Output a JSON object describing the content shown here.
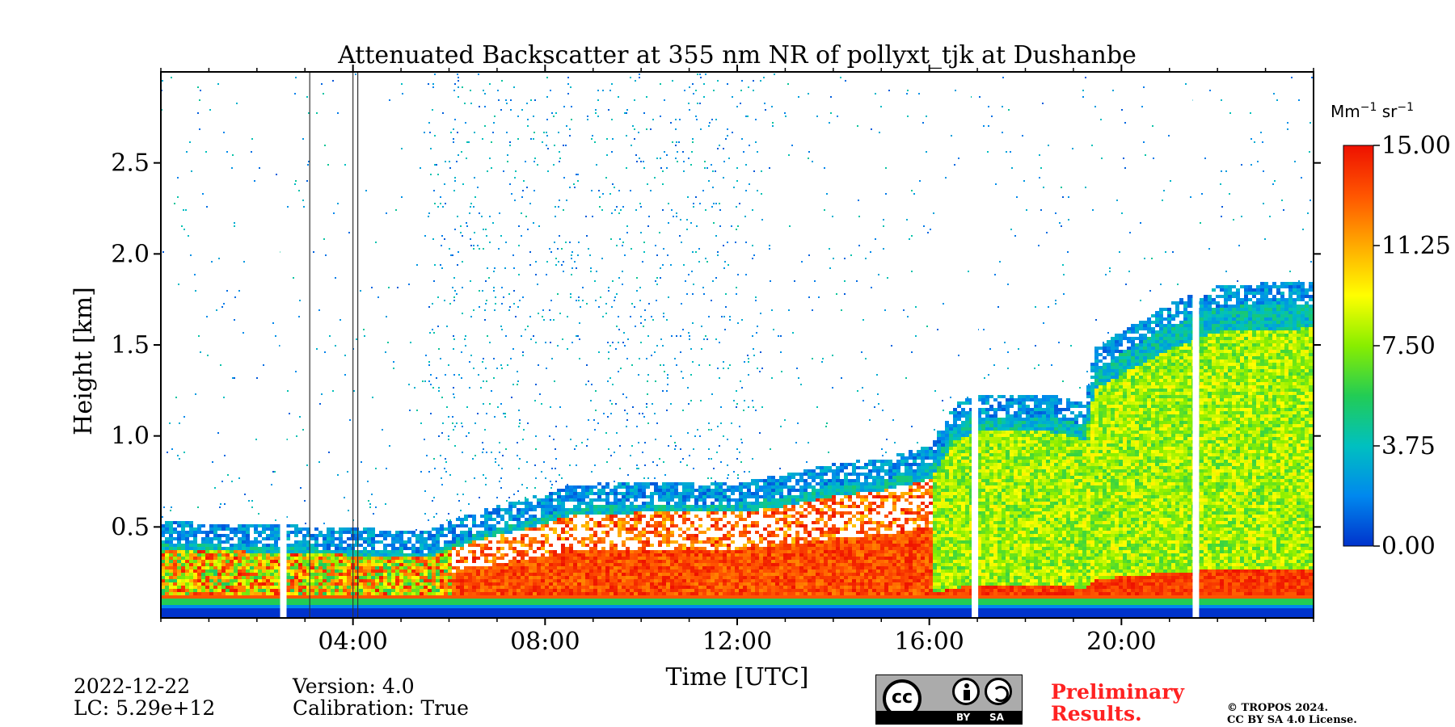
{
  "chart_data": {
    "type": "heatmap",
    "title": "Attenuated Backscatter at 355 nm NR of pollyxt_tjk at Dushanbe",
    "xlabel": "Time [UTC]",
    "ylabel": "Height [km]",
    "xlim_hours": [
      0,
      24
    ],
    "ylim_km": [
      0,
      3.0
    ],
    "x_ticks": [
      {
        "value": 4,
        "label": "04:00"
      },
      {
        "value": 8,
        "label": "08:00"
      },
      {
        "value": 12,
        "label": "12:00"
      },
      {
        "value": 16,
        "label": "16:00"
      },
      {
        "value": 20,
        "label": "20:00"
      }
    ],
    "y_ticks": [
      {
        "value": 0.5,
        "label": "0.5"
      },
      {
        "value": 1.0,
        "label": "1.0"
      },
      {
        "value": 1.5,
        "label": "1.5"
      },
      {
        "value": 2.0,
        "label": "2.0"
      },
      {
        "value": 2.5,
        "label": "2.5"
      }
    ],
    "colorbar": {
      "unit_main": "Mm",
      "unit_exp1": "−1",
      "unit_mid": " sr",
      "unit_exp2": "−1",
      "min": 0,
      "max": 15,
      "ticks": [
        {
          "value": 15.0,
          "label": "15.00"
        },
        {
          "value": 11.25,
          "label": "11.25"
        },
        {
          "value": 7.5,
          "label": "7.50"
        },
        {
          "value": 3.75,
          "label": "3.75"
        },
        {
          "value": 0.0,
          "label": "0.00"
        }
      ],
      "colors": [
        "#0033cc",
        "#0088ee",
        "#00c0c0",
        "#22cc55",
        "#88ee00",
        "#ffff00",
        "#ffaa00",
        "#ff5500",
        "#ee1100"
      ]
    },
    "gaps_hours": [
      2.55,
      16.95,
      21.55
    ],
    "thin_lines_hours": [
      3.1,
      4.0,
      4.1
    ],
    "boundary_layer_top_km": [
      [
        0,
        0.4
      ],
      [
        2.5,
        0.38
      ],
      [
        3.5,
        0.37
      ],
      [
        5.5,
        0.35
      ],
      [
        6.5,
        0.45
      ],
      [
        7.5,
        0.52
      ],
      [
        8.5,
        0.6
      ],
      [
        10.0,
        0.62
      ],
      [
        12.0,
        0.62
      ],
      [
        13.0,
        0.66
      ],
      [
        14.0,
        0.72
      ],
      [
        15.0,
        0.75
      ],
      [
        16.0,
        0.82
      ],
      [
        16.5,
        1.05
      ],
      [
        17.0,
        1.1
      ],
      [
        18.5,
        1.1
      ],
      [
        19.2,
        1.05
      ],
      [
        19.4,
        1.35
      ],
      [
        20.0,
        1.45
      ],
      [
        21.0,
        1.6
      ],
      [
        22.0,
        1.7
      ],
      [
        24.0,
        1.72
      ]
    ]
  },
  "footer": {
    "date": "2022-12-22",
    "lc": "LC: 5.29e+12",
    "version": "Version: 4.0",
    "calibration": "Calibration: True",
    "preliminary": "Preliminary",
    "results": "Results.",
    "copyright_line1": "© TROPOS 2024.",
    "copyright_line2": "CC BY SA 4.0 License."
  },
  "license_badge": {
    "cc": "cc",
    "by": "BY",
    "sa": "SA"
  }
}
